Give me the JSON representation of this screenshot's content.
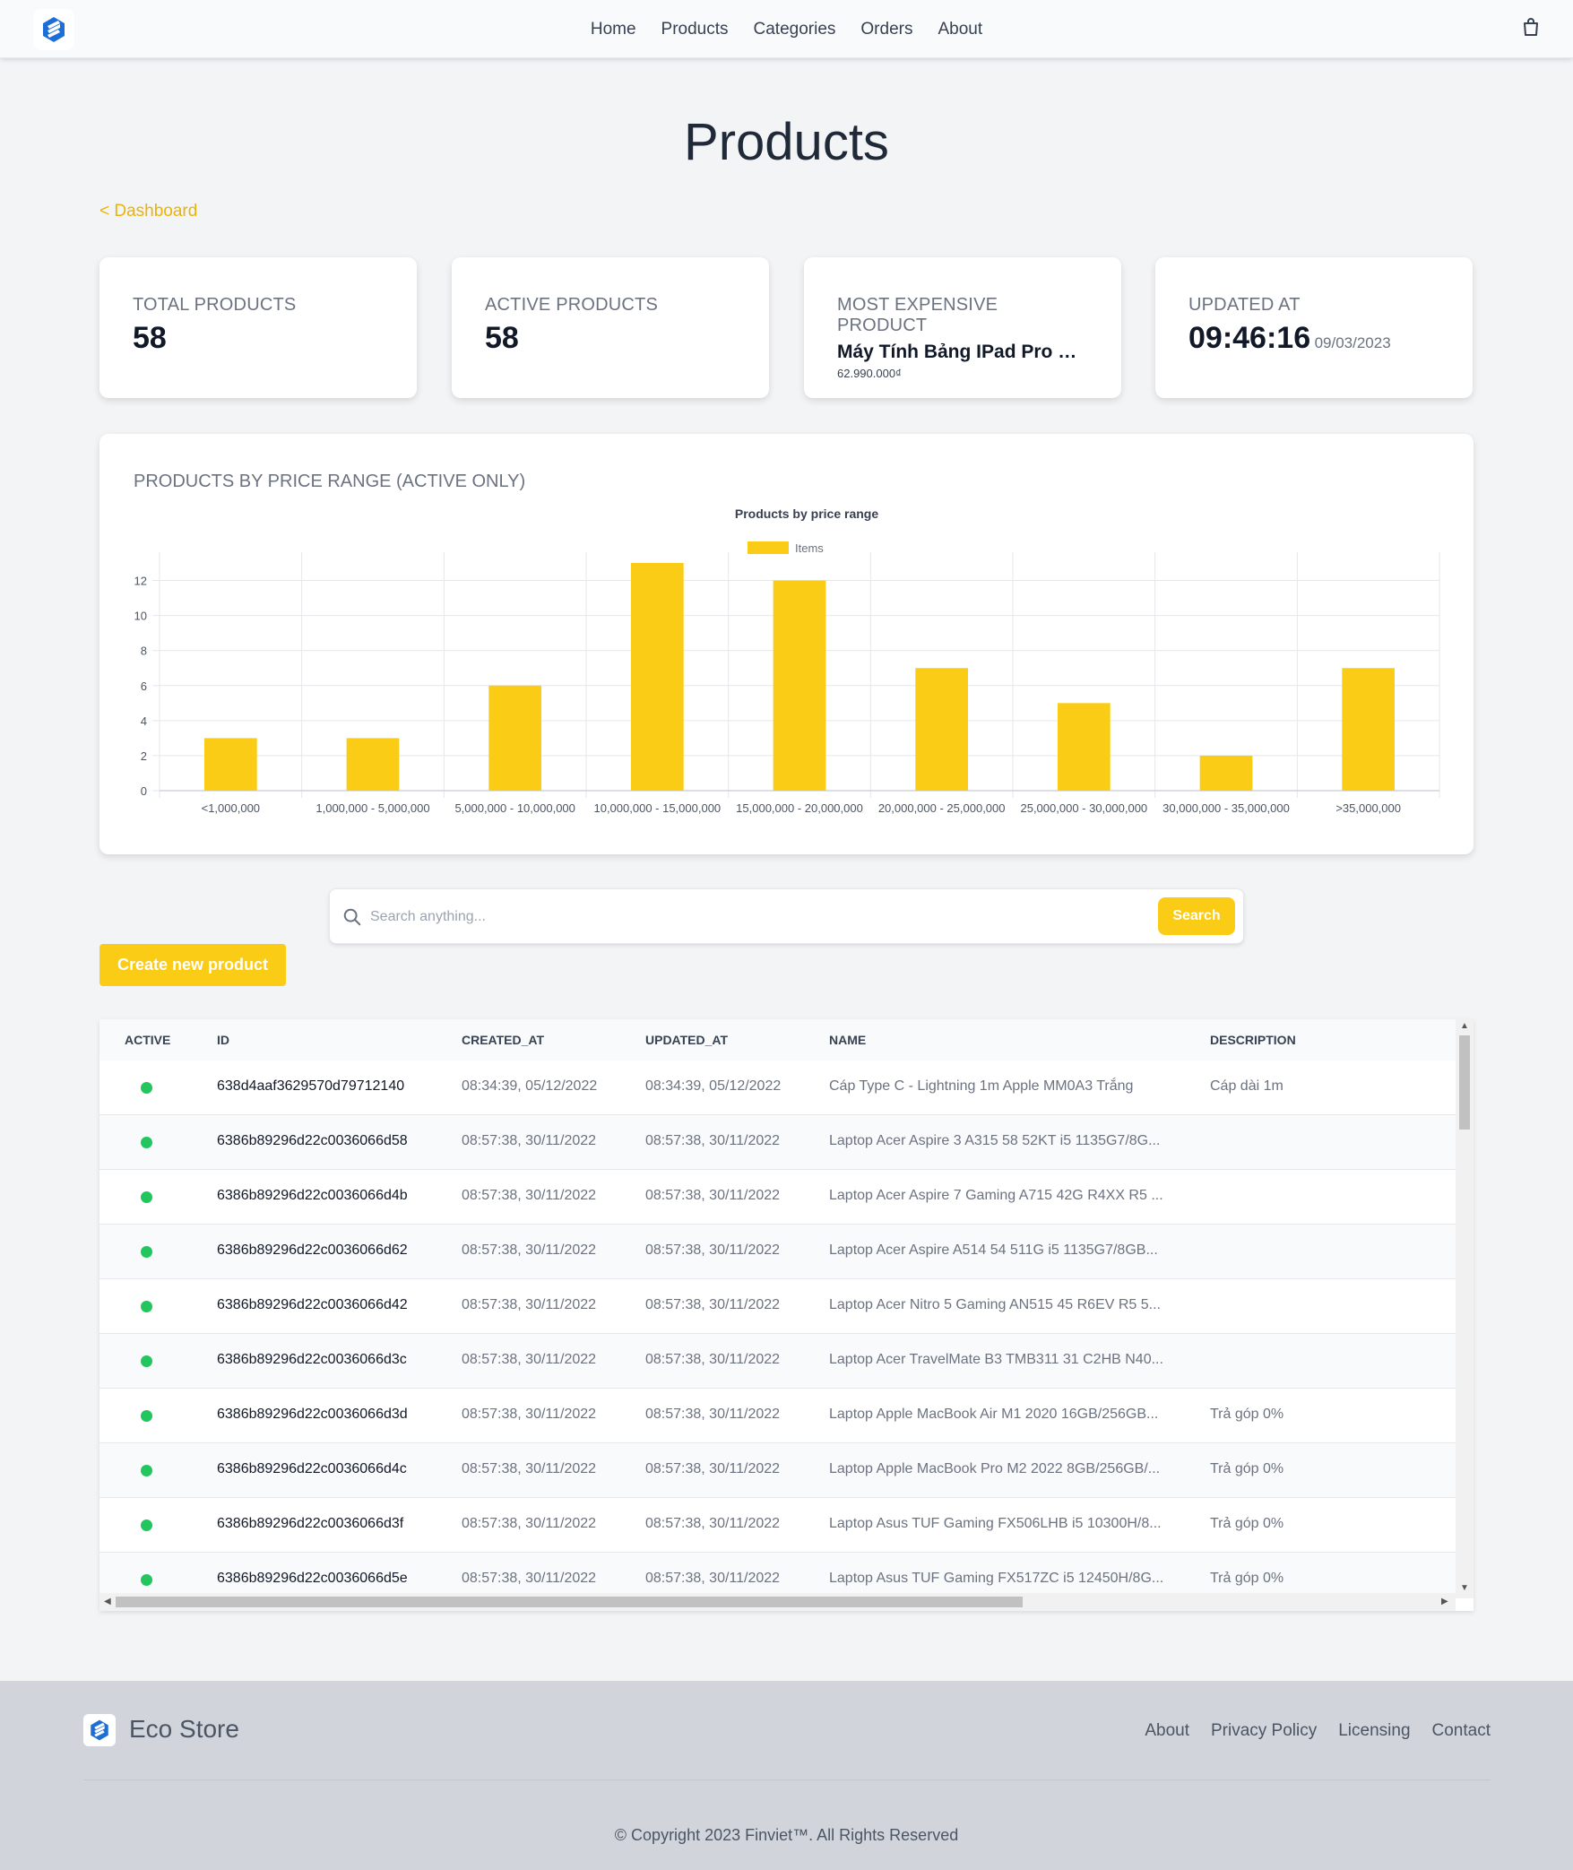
{
  "nav": {
    "items": [
      "Home",
      "Products",
      "Categories",
      "Orders",
      "About"
    ]
  },
  "page": {
    "title": "Products",
    "breadcrumb": "< Dashboard"
  },
  "stats": {
    "total_label": "TOTAL PRODUCTS",
    "total_value": "58",
    "active_label": "ACTIVE PRODUCTS",
    "active_value": "58",
    "expensive_label": "MOST EXPENSIVE PRODUCT",
    "expensive_name": "Máy Tính Bảng IPad Pro M...",
    "expensive_price": "62.990.000₫",
    "updated_label": "UPDATED AT",
    "updated_time": "09:46:16",
    "updated_date": "09/03/2023"
  },
  "chart_heading": "PRODUCTS BY PRICE RANGE (ACTIVE ONLY)",
  "chart_data": {
    "type": "bar",
    "title": "Products by price range",
    "legend": "Items",
    "legend_position": "top",
    "categories": [
      "<1,000,000",
      "1,000,000 - 5,000,000",
      "5,000,000 - 10,000,000",
      "10,000,000 - 15,000,000",
      "15,000,000 - 20,000,000",
      "20,000,000 - 25,000,000",
      "25,000,000 - 30,000,000",
      "30,000,000 - 35,000,000",
      ">35,000,000"
    ],
    "values": [
      3,
      3,
      6,
      13,
      12,
      7,
      5,
      2,
      7
    ],
    "ylim": [
      0,
      13
    ],
    "yticks": [
      0,
      2,
      4,
      6,
      8,
      10,
      12
    ],
    "grid": true,
    "color": "#facc15"
  },
  "search": {
    "placeholder": "Search anything...",
    "button": "Search"
  },
  "create_button": "Create new product",
  "table": {
    "headers": [
      "ACTIVE",
      "ID",
      "CREATED_AT",
      "UPDATED_AT",
      "NAME",
      "DESCRIPTION"
    ],
    "rows": [
      {
        "id": "638d4aaf3629570d79712140",
        "created": "08:34:39, 05/12/2022",
        "updated": "08:34:39, 05/12/2022",
        "name": "Cáp Type C - Lightning 1m Apple MM0A3 Trắng",
        "desc": "Cáp dài 1m"
      },
      {
        "id": "6386b89296d22c0036066d58",
        "created": "08:57:38, 30/11/2022",
        "updated": "08:57:38, 30/11/2022",
        "name": "Laptop Acer Aspire 3 A315 58 52KT i5 1135G7/8G...",
        "desc": ""
      },
      {
        "id": "6386b89296d22c0036066d4b",
        "created": "08:57:38, 30/11/2022",
        "updated": "08:57:38, 30/11/2022",
        "name": "Laptop Acer Aspire 7 Gaming A715 42G R4XX R5 ...",
        "desc": ""
      },
      {
        "id": "6386b89296d22c0036066d62",
        "created": "08:57:38, 30/11/2022",
        "updated": "08:57:38, 30/11/2022",
        "name": "Laptop Acer Aspire A514 54 511G i5 1135G7/8GB...",
        "desc": ""
      },
      {
        "id": "6386b89296d22c0036066d42",
        "created": "08:57:38, 30/11/2022",
        "updated": "08:57:38, 30/11/2022",
        "name": "Laptop Acer Nitro 5 Gaming AN515 45 R6EV R5 5...",
        "desc": ""
      },
      {
        "id": "6386b89296d22c0036066d3c",
        "created": "08:57:38, 30/11/2022",
        "updated": "08:57:38, 30/11/2022",
        "name": "Laptop Acer TravelMate B3 TMB311 31 C2HB N40...",
        "desc": ""
      },
      {
        "id": "6386b89296d22c0036066d3d",
        "created": "08:57:38, 30/11/2022",
        "updated": "08:57:38, 30/11/2022",
        "name": "Laptop Apple MacBook Air M1 2020 16GB/256GB...",
        "desc": "Trả góp 0%"
      },
      {
        "id": "6386b89296d22c0036066d4c",
        "created": "08:57:38, 30/11/2022",
        "updated": "08:57:38, 30/11/2022",
        "name": "Laptop Apple MacBook Pro M2 2022 8GB/256GB/...",
        "desc": "Trả góp 0%"
      },
      {
        "id": "6386b89296d22c0036066d3f",
        "created": "08:57:38, 30/11/2022",
        "updated": "08:57:38, 30/11/2022",
        "name": "Laptop Asus TUF Gaming FX506LHB i5 10300H/8...",
        "desc": "Trả góp 0%"
      },
      {
        "id": "6386b89296d22c0036066d5e",
        "created": "08:57:38, 30/11/2022",
        "updated": "08:57:38, 30/11/2022",
        "name": "Laptop Asus TUF Gaming FX517ZC i5 12450H/8G...",
        "desc": "Trả góp 0%"
      }
    ]
  },
  "footer": {
    "brand": "Eco Store",
    "links": [
      "About",
      "Privacy Policy",
      "Licensing",
      "Contact"
    ],
    "copyright": "© Copyright 2023 Finviet™. All Rights Reserved"
  },
  "icons": {
    "logo": "brand-logo-icon",
    "cart": "shopping-bag-icon",
    "search": "search-icon",
    "status": "active-dot-icon"
  },
  "colors": {
    "accent": "#facc15",
    "link": "#eab308",
    "brand": "#1d6fd6",
    "active": "#22c55e"
  }
}
